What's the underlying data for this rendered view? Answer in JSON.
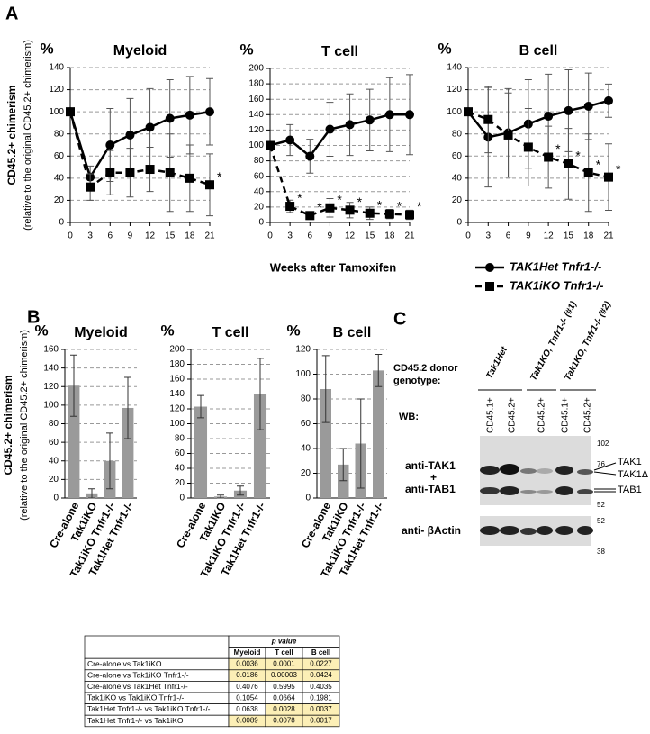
{
  "panel_a": {
    "label": "A",
    "y_title": "CD45.2+ chimerism",
    "y_subtitle": "(relative to the original CD45.2+ chimerism)",
    "x_title": "Weeks after Tamoxifen"
  },
  "panel_b": {
    "label": "B",
    "y_title": "CD45.2+ chimerism",
    "y_subtitle": "(relative to the original CD45.2+ chimerism)"
  },
  "chart_data": [
    {
      "type": "line",
      "title": "Myeloid",
      "y_unit": "%",
      "x": [
        0,
        3,
        6,
        9,
        12,
        15,
        18,
        21
      ],
      "xlim": [
        0,
        21
      ],
      "xticks": [
        0,
        3,
        6,
        9,
        12,
        15,
        18,
        21
      ],
      "ylim": [
        0,
        140
      ],
      "yticks": [
        0,
        20,
        40,
        60,
        80,
        100,
        120,
        140
      ],
      "grid": true,
      "series": [
        {
          "color": "#000000",
          "marker": "circle",
          "dash": false,
          "values": [
            100,
            41,
            70,
            79,
            86,
            94,
            97,
            100
          ],
          "errors": [
            0,
            10,
            33,
            33,
            35,
            35,
            35,
            30
          ]
        },
        {
          "color": "#000000",
          "marker": "square",
          "dash": true,
          "values": [
            100,
            32,
            45,
            45,
            48,
            45,
            40,
            34
          ],
          "errors": [
            0,
            12,
            20,
            22,
            20,
            35,
            30,
            28
          ]
        }
      ],
      "annotations": [
        {
          "x": 21,
          "text": "*"
        }
      ]
    },
    {
      "type": "line",
      "title": "T cell",
      "y_unit": "%",
      "x": [
        0,
        3,
        6,
        9,
        12,
        15,
        18,
        21
      ],
      "xlim": [
        0,
        21
      ],
      "xticks": [
        0,
        3,
        6,
        9,
        12,
        15,
        18,
        21
      ],
      "ylim": [
        0,
        200
      ],
      "yticks": [
        0,
        20,
        40,
        60,
        80,
        100,
        120,
        140,
        160,
        180,
        200
      ],
      "grid": true,
      "series": [
        {
          "color": "#000000",
          "marker": "circle",
          "dash": false,
          "values": [
            100,
            107,
            86,
            121,
            127,
            133,
            140,
            140
          ],
          "errors": [
            0,
            20,
            22,
            35,
            40,
            40,
            48,
            52
          ]
        },
        {
          "color": "#000000",
          "marker": "square",
          "dash": true,
          "values": [
            100,
            21,
            9,
            19,
            16,
            12,
            11,
            10
          ],
          "errors": [
            0,
            8,
            5,
            12,
            10,
            8,
            6,
            6
          ]
        }
      ],
      "annotations": [
        {
          "x": 3,
          "text": "*"
        },
        {
          "x": 6,
          "text": "*"
        },
        {
          "x": 9,
          "text": "*"
        },
        {
          "x": 12,
          "text": "*"
        },
        {
          "x": 15,
          "text": "*"
        },
        {
          "x": 18,
          "text": "*"
        },
        {
          "x": 21,
          "text": "*"
        }
      ]
    },
    {
      "type": "line",
      "title": "B cell",
      "y_unit": "%",
      "x": [
        0,
        3,
        6,
        9,
        12,
        15,
        18,
        21
      ],
      "xlim": [
        0,
        21
      ],
      "xticks": [
        0,
        3,
        6,
        9,
        12,
        15,
        18,
        21
      ],
      "ylim": [
        0,
        140
      ],
      "yticks": [
        0,
        20,
        40,
        60,
        80,
        100,
        120,
        140
      ],
      "grid": true,
      "legend": "bottom-right",
      "series": [
        {
          "name": "TAK1Het Tnfr1-/-",
          "color": "#000000",
          "marker": "circle",
          "dash": false,
          "values": [
            100,
            77,
            81,
            89,
            96,
            101,
            105,
            110
          ],
          "errors": [
            0,
            45,
            40,
            40,
            38,
            37,
            30,
            15
          ]
        },
        {
          "name": "TAK1iKO Tnfr1-/-",
          "color": "#000000",
          "marker": "square",
          "dash": true,
          "values": [
            100,
            93,
            79,
            68,
            59,
            53,
            45,
            41
          ],
          "errors": [
            0,
            30,
            38,
            35,
            28,
            32,
            35,
            30
          ]
        }
      ],
      "annotations": [
        {
          "x": 12,
          "text": "*"
        },
        {
          "x": 15,
          "text": "*"
        },
        {
          "x": 18,
          "text": "*"
        },
        {
          "x": 21,
          "text": "*"
        }
      ]
    },
    {
      "type": "bar",
      "title": "Myeloid",
      "y_unit": "%",
      "categories": [
        "Cre-alone",
        "Tak1iKO",
        "Tak1iKO Tnfr1-/-",
        "Tak1Het Tnfr1-/-"
      ],
      "values": [
        121,
        5,
        40,
        97
      ],
      "errors": [
        33,
        5,
        30,
        33
      ],
      "color": "#9a9a9a",
      "ylim": [
        0,
        160
      ],
      "yticks": [
        0,
        20,
        40,
        60,
        80,
        100,
        120,
        140,
        160
      ],
      "grid": true
    },
    {
      "type": "bar",
      "title": "T cell",
      "y_unit": "%",
      "categories": [
        "Cre-alone",
        "Tak1iKO",
        "Tak1iKO Tnfr1-/-",
        "Tak1Het Tnfr1-/-"
      ],
      "values": [
        123,
        2,
        10,
        140
      ],
      "errors": [
        15,
        2,
        6,
        48
      ],
      "color": "#9a9a9a",
      "ylim": [
        0,
        200
      ],
      "yticks": [
        0,
        20,
        40,
        60,
        80,
        100,
        120,
        140,
        160,
        180,
        200
      ],
      "grid": true
    },
    {
      "type": "bar",
      "title": "B cell",
      "y_unit": "%",
      "categories": [
        "Cre-alone",
        "Tak1iKO",
        "Tak1iKO Tnfr1-/-",
        "Tak1Het Tnfr1-/-"
      ],
      "values": [
        88,
        27,
        44,
        103
      ],
      "errors": [
        27,
        13,
        36,
        13
      ],
      "color": "#9a9a9a",
      "ylim": [
        0,
        120
      ],
      "yticks": [
        0,
        20,
        40,
        60,
        80,
        100,
        120
      ],
      "grid": true
    }
  ],
  "panel_c": {
    "label": "C",
    "donor_label": "CD45.2 donor",
    "genotype_label": "genotype:",
    "groups": [
      "Tak1Het",
      "Tak1KO, Tnfr1-/- (#1)",
      "Tak1KO, Tnfr1-/- (#2)"
    ],
    "lanes": [
      "CD45.1+",
      "CD45.2+",
      "CD45.2+",
      "CD45.1+",
      "CD45.2+"
    ],
    "wb": "WB:",
    "antibody1": "anti-TAK1",
    "plus": "+",
    "antibody2": "anti-TAB1",
    "antibody3": "anti- βActin",
    "markers": [
      "102",
      "76",
      "52",
      "52",
      "38"
    ],
    "bands": [
      "TAK1",
      "TAK1Δ",
      "TAB1"
    ]
  },
  "table": {
    "p_header": "p value",
    "columns": [
      "Myeloid",
      "T cell",
      "B cell"
    ],
    "highlight_color": "#fcefb6",
    "rows": [
      {
        "label": "Cre-alone  vs  Tak1iKO",
        "values": [
          "0.0036",
          "0.0001",
          "0.0227"
        ],
        "highlight": [
          true,
          true,
          true
        ]
      },
      {
        "label": "Cre-alone  vs  Tak1iKO Tnfr1-/-",
        "values": [
          "0.0186",
          "0.00003",
          "0.0424"
        ],
        "highlight": [
          true,
          true,
          true
        ]
      },
      {
        "label": "Cre-alone  vs  Tak1Het Tnfr1-/-",
        "values": [
          "0.4076",
          "0.5995",
          "0.4035"
        ],
        "highlight": [
          false,
          false,
          false
        ]
      },
      {
        "label": "Tak1iKO  vs  Tak1iKO Tnfr1-/-",
        "values": [
          "0.1054",
          "0.0664",
          "0.1981"
        ],
        "highlight": [
          false,
          false,
          false
        ]
      },
      {
        "label": "Tak1Het Tnfr1-/- vs Tak1iKO Tnfr1-/-",
        "values": [
          "0.0638",
          "0.0028",
          "0.0037"
        ],
        "highlight": [
          false,
          true,
          true
        ]
      },
      {
        "label": "Tak1Het Tnfr1-/- vs  Tak1iKO",
        "values": [
          "0.0089",
          "0.0078",
          "0.0017"
        ],
        "highlight": [
          true,
          true,
          true
        ]
      }
    ]
  }
}
